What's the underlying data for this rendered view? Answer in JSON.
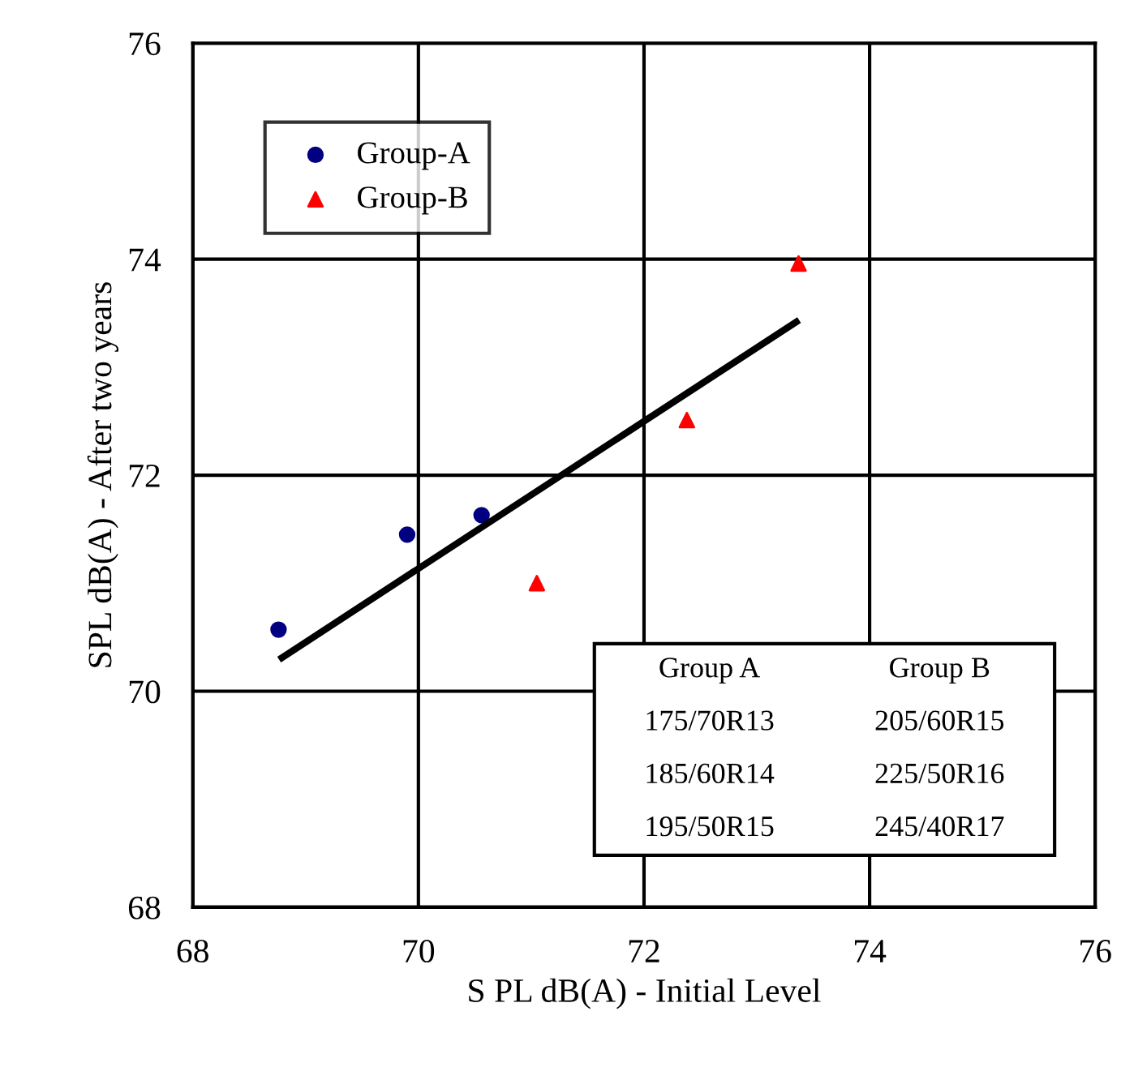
{
  "chart_data": {
    "type": "scatter",
    "xlabel": "S PL dB(A) - Initial Level",
    "ylabel": "SPL dB(A) - After two years",
    "xlim": [
      68,
      76
    ],
    "ylim": [
      68,
      76
    ],
    "xticks": [
      68,
      70,
      72,
      74,
      76
    ],
    "yticks": [
      68,
      70,
      72,
      74,
      76
    ],
    "grid": true,
    "legend": "top left",
    "series": [
      {
        "name": "Group-A",
        "color": "#000080",
        "marker": "circle",
        "x": [
          68.76,
          69.9,
          70.56
        ],
        "values": [
          70.57,
          71.45,
          71.63
        ]
      },
      {
        "name": "Group-B",
        "color": "#ff0000",
        "marker": "triangle",
        "x": [
          71.05,
          72.38,
          73.37
        ],
        "values": [
          71.0,
          72.51,
          73.96
        ]
      },
      {
        "type": "line",
        "color": "#000000",
        "marker": "none",
        "x": [
          68.79,
          73.35
        ],
        "values": [
          70.31,
          73.42
        ]
      }
    ],
    "annotations": [
      "Group A",
      "Group B",
      "175/70R13",
      "205/60R15",
      "185/60R14",
      "225/50R16",
      "195/50R15",
      "245/40R17"
    ]
  }
}
